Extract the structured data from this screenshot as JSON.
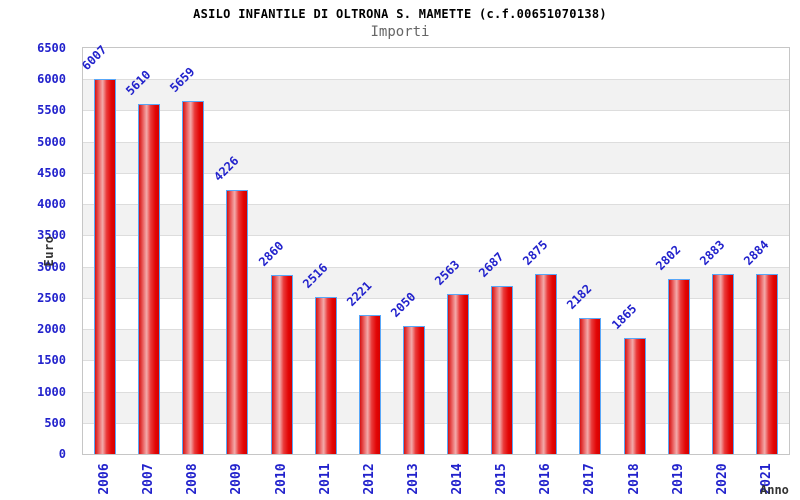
{
  "header": {
    "title": "ASILO INFANTILE DI OLTRONA S. MAMETTE (c.f.00651070138)",
    "subtitle": "Importi"
  },
  "chart_data": {
    "type": "bar",
    "title": "ASILO INFANTILE DI OLTRONA S. MAMETTE (c.f.00651070138)",
    "subtitle": "Importi",
    "categories": [
      "2006",
      "2007",
      "2008",
      "2009",
      "2010",
      "2011",
      "2012",
      "2013",
      "2014",
      "2015",
      "2016",
      "2017",
      "2018",
      "2019",
      "2020",
      "2021"
    ],
    "values": [
      6007,
      5610,
      5659,
      4226,
      2860,
      2516,
      2221,
      2050,
      2563,
      2687,
      2875,
      2182,
      1865,
      2802,
      2883,
      2884
    ],
    "xlabel": "Anno",
    "ylabel": "Euro",
    "ylim": [
      0,
      6500
    ],
    "ytick_step": 500,
    "ytick_labels": [
      "0",
      "500",
      "1000",
      "1500",
      "2000",
      "2500",
      "3000",
      "3500",
      "4000",
      "4500",
      "5000",
      "5500",
      "6000",
      "6500"
    ],
    "value_labels_shown": true,
    "legend": "none",
    "grid": "horizontal bands every 500, alternating white and light gray",
    "colors": {
      "bar_fill_red": "#e60d0d",
      "bar_highlight": "#f3abab",
      "bar_border_blue": "#58a7f8",
      "label_blue": "#2222cc",
      "axis_title_text": "#333333",
      "title_text": "#000000",
      "subtitle_text": "#666666",
      "band_gray": "#f2f2f2",
      "gridline_gray": "#dddddd",
      "plot_border_gray": "#c6c6c6"
    }
  }
}
